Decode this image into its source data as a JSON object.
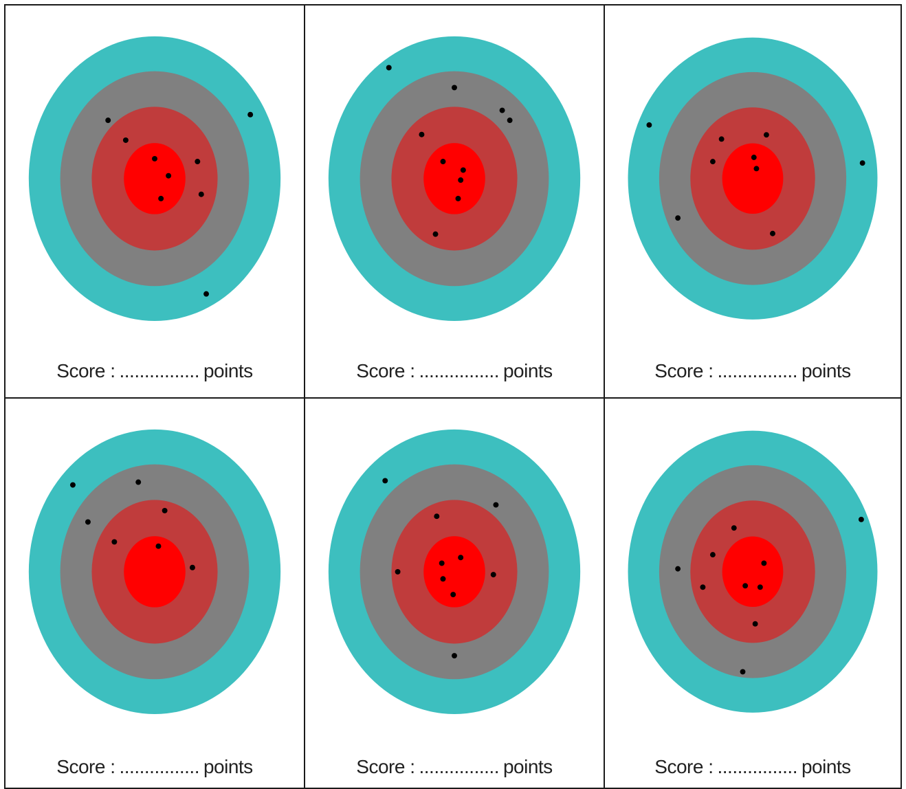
{
  "colors": {
    "outer_ring": "#3dbfbf",
    "second_ring": "#808080",
    "third_ring": "#c03c3c",
    "bullseye": "#ff0000",
    "hit": "#000000",
    "grid_line": "#1a1a1a"
  },
  "score_label": "Score :",
  "score_dots": "................",
  "score_unit": "points",
  "targets": [
    {
      "hits": [
        [
          -0.37,
          -0.41
        ],
        [
          -0.23,
          -0.27
        ],
        [
          0.0,
          -0.14
        ],
        [
          0.11,
          -0.02
        ],
        [
          0.05,
          0.14
        ],
        [
          0.34,
          -0.12
        ],
        [
          0.37,
          0.11
        ],
        [
          0.76,
          -0.45
        ],
        [
          0.41,
          0.81
        ]
      ]
    },
    {
      "hits": [
        [
          -0.52,
          -0.78
        ],
        [
          0.0,
          -0.64
        ],
        [
          0.38,
          -0.48
        ],
        [
          0.44,
          -0.41
        ],
        [
          -0.26,
          -0.31
        ],
        [
          -0.09,
          -0.12
        ],
        [
          0.07,
          -0.06
        ],
        [
          0.05,
          0.01
        ],
        [
          0.03,
          0.14
        ],
        [
          -0.15,
          0.39
        ]
      ]
    },
    {
      "hits": [
        [
          -0.83,
          -0.38
        ],
        [
          -0.25,
          -0.28
        ],
        [
          0.11,
          -0.31
        ],
        [
          -0.32,
          -0.12
        ],
        [
          0.01,
          -0.15
        ],
        [
          0.03,
          -0.07
        ],
        [
          0.88,
          -0.11
        ],
        [
          -0.6,
          0.28
        ],
        [
          0.16,
          0.39
        ]
      ]
    },
    {
      "hits": [
        [
          -0.65,
          -0.61
        ],
        [
          -0.13,
          -0.63
        ],
        [
          -0.53,
          -0.35
        ],
        [
          0.08,
          -0.43
        ],
        [
          -0.32,
          -0.21
        ],
        [
          0.03,
          -0.18
        ],
        [
          0.3,
          -0.03
        ]
      ]
    },
    {
      "hits": [
        [
          -0.55,
          -0.64
        ],
        [
          -0.14,
          -0.39
        ],
        [
          0.33,
          -0.47
        ],
        [
          -0.1,
          -0.06
        ],
        [
          0.05,
          -0.1
        ],
        [
          -0.45,
          0.0
        ],
        [
          -0.09,
          0.05
        ],
        [
          0.31,
          0.02
        ],
        [
          -0.01,
          0.16
        ],
        [
          0.0,
          0.59
        ]
      ]
    },
    {
      "hits": [
        [
          -0.15,
          -0.31
        ],
        [
          -0.32,
          -0.12
        ],
        [
          0.87,
          -0.37
        ],
        [
          0.09,
          -0.06
        ],
        [
          -0.6,
          -0.02
        ],
        [
          -0.4,
          0.11
        ],
        [
          -0.06,
          0.1
        ],
        [
          0.06,
          0.11
        ],
        [
          0.02,
          0.37
        ],
        [
          -0.08,
          0.71
        ]
      ]
    }
  ]
}
